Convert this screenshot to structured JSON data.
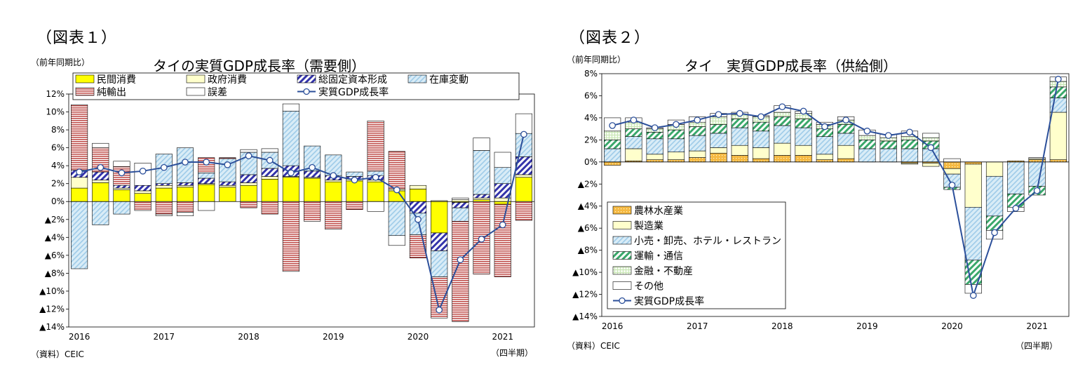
{
  "colors": {
    "private_consumption": "#ffff00",
    "government_consumption": "#ffffcc",
    "gfcf": "#3333aa",
    "inventory": "#9ecbe8",
    "net_exports": "#c0504d",
    "error": "#ffffff",
    "gdp_line": "#2b4f9a",
    "agriculture": "#f5b942",
    "manufacturing": "#ffffcc",
    "retail_hotel": "#9ecbe8",
    "transport": "#3aa86b",
    "finance": "#c8e6b4",
    "other": "#ffffff"
  },
  "panels": [
    {
      "fig_label": "（図表１）",
      "unit": "（前年同期比）",
      "title": "タイの実質GDP成長率（需要側）",
      "source": "（資料）CEIC",
      "quarter_note": "（四半期）"
    },
    {
      "fig_label": "（図表２）",
      "unit": "（前年同期比）",
      "title": "タイ　実質GDP成長率（供給側）",
      "source": "（資料）CEIC",
      "quarter_note": "（四半期）"
    }
  ],
  "chart_data": [
    {
      "type": "bar",
      "stacked": true,
      "title": "タイの実質GDP成長率（需要側）",
      "ylabel": "（前年同期比）",
      "xlabel": "",
      "ylim": [
        -14,
        12
      ],
      "yticks": [
        12,
        10,
        8,
        6,
        4,
        2,
        0,
        -2,
        -4,
        -6,
        -8,
        -10,
        -12,
        -14
      ],
      "ytick_labels": [
        "12%",
        "10%",
        "8%",
        "6%",
        "4%",
        "2%",
        "0%",
        "▲2%",
        "▲4%",
        "▲6%",
        "▲8%",
        "▲10%",
        "▲12%",
        "▲14%"
      ],
      "x_labels": [
        "2016",
        "2017",
        "2018",
        "2019",
        "2020",
        "2021"
      ],
      "x_label_quarter_index": [
        0,
        4,
        8,
        12,
        16,
        20
      ],
      "categories": [
        "2016Q1",
        "2016Q2",
        "2016Q3",
        "2016Q4",
        "2017Q1",
        "2017Q2",
        "2017Q3",
        "2017Q4",
        "2018Q1",
        "2018Q2",
        "2018Q3",
        "2018Q4",
        "2019Q1",
        "2019Q2",
        "2019Q3",
        "2019Q4",
        "2020Q1",
        "2020Q2",
        "2020Q3",
        "2020Q4",
        "2021Q1",
        "2021Q2"
      ],
      "legend_position": "top",
      "grid": false,
      "series": [
        {
          "name": "民間消費",
          "color_key": "private_consumption",
          "pattern": "solid",
          "values": [
            1.5,
            2.1,
            1.3,
            0.9,
            1.5,
            1.6,
            1.9,
            1.6,
            1.8,
            2.5,
            2.7,
            2.6,
            2.2,
            2.3,
            2.2,
            1.2,
            1.4,
            -3.5,
            -0.1,
            0.2,
            -0.3,
            2.7
          ]
        },
        {
          "name": "政府消費",
          "color_key": "government_consumption",
          "pattern": "solid",
          "values": [
            1.2,
            0.3,
            0.2,
            0.3,
            0.3,
            0.2,
            0.1,
            0.2,
            0.3,
            0.3,
            0.1,
            0.1,
            0.2,
            0.2,
            0.2,
            0.2,
            0.4,
            0.1,
            0.2,
            0.2,
            0.4,
            0.3
          ]
        },
        {
          "name": "総固定資本形成",
          "color_key": "gfcf",
          "pattern": "hatch",
          "values": [
            0.8,
            0.9,
            0.3,
            0.6,
            0.2,
            0.3,
            0.6,
            0.4,
            0.9,
            0.9,
            1.2,
            0.7,
            0.5,
            0.3,
            0.5,
            0.0,
            -1.3,
            -2.0,
            -0.6,
            0.4,
            1.6,
            2.0
          ]
        },
        {
          "name": "在庫変動",
          "color_key": "inventory",
          "pattern": "light-hatch",
          "values": [
            -7.5,
            -2.6,
            -1.4,
            0.0,
            3.3,
            3.9,
            0.6,
            2.6,
            2.5,
            1.8,
            6.1,
            2.8,
            2.3,
            0.5,
            0.5,
            -3.8,
            -2.4,
            -2.9,
            -1.5,
            4.9,
            1.8,
            2.6
          ]
        },
        {
          "name": "純輸出",
          "color_key": "net_exports",
          "pattern": "stripe",
          "values": [
            7.3,
            2.7,
            2.1,
            -1.0,
            -1.4,
            -1.2,
            1.7,
            0.1,
            -0.7,
            -1.4,
            -7.8,
            -2.2,
            -3.1,
            -0.9,
            5.6,
            4.2,
            -2.6,
            -4.6,
            -11.2,
            -8.1,
            -8.1,
            -2.1
          ]
        },
        {
          "name": "誤差",
          "color_key": "error",
          "pattern": "solid",
          "values": [
            0.0,
            0.5,
            0.6,
            2.5,
            -0.2,
            -0.4,
            -1.0,
            0.0,
            0.3,
            0.4,
            0.8,
            0.0,
            0.0,
            0.0,
            -1.1,
            -1.1,
            0.0,
            0.0,
            0.2,
            1.4,
            1.7,
            2.2
          ]
        }
      ],
      "line": {
        "name": "実質GDP成長率",
        "color_key": "gdp_line",
        "values": [
          3.3,
          3.8,
          3.2,
          3.4,
          3.8,
          4.4,
          4.4,
          4.1,
          5.1,
          4.6,
          3.2,
          3.8,
          2.9,
          2.4,
          2.7,
          1.3,
          -2.0,
          -12.1,
          -6.5,
          -4.2,
          -2.6,
          7.5
        ]
      }
    },
    {
      "type": "bar",
      "stacked": true,
      "title": "タイ　実質GDP成長率（供給側）",
      "ylabel": "（前年同期比）",
      "xlabel": "",
      "ylim": [
        -14,
        8
      ],
      "yticks": [
        8,
        6,
        4,
        2,
        0,
        -2,
        -4,
        -6,
        -8,
        -10,
        -12,
        -14
      ],
      "ytick_labels": [
        "8%",
        "6%",
        "4%",
        "2%",
        "0%",
        "▲2%",
        "▲4%",
        "▲6%",
        "▲8%",
        "▲10%",
        "▲12%",
        "▲14%"
      ],
      "x_labels": [
        "2016",
        "2017",
        "2018",
        "2019",
        "2020",
        "2021"
      ],
      "x_label_quarter_index": [
        0,
        4,
        8,
        12,
        16,
        20
      ],
      "categories": [
        "2016Q1",
        "2016Q2",
        "2016Q3",
        "2016Q4",
        "2017Q1",
        "2017Q2",
        "2017Q3",
        "2017Q4",
        "2018Q1",
        "2018Q2",
        "2018Q3",
        "2018Q4",
        "2019Q1",
        "2019Q2",
        "2019Q3",
        "2019Q4",
        "2020Q1",
        "2020Q2",
        "2020Q3",
        "2020Q4",
        "2021Q1",
        "2021Q2"
      ],
      "legend_position": "bottom-left",
      "grid": false,
      "series": [
        {
          "name": "農林水産業",
          "color_key": "agriculture",
          "pattern": "dots",
          "values": [
            -0.3,
            0.1,
            0.2,
            0.2,
            0.4,
            0.8,
            0.6,
            0.3,
            0.6,
            0.6,
            0.2,
            0.3,
            0.0,
            0.0,
            -0.1,
            -0.1,
            -0.6,
            -0.2,
            0.0,
            0.1,
            0.2,
            0.2
          ]
        },
        {
          "name": "製造業",
          "color_key": "manufacturing",
          "pattern": "solid",
          "values": [
            0.0,
            1.1,
            0.5,
            0.7,
            0.6,
            0.5,
            0.9,
            1.0,
            1.1,
            0.9,
            0.5,
            1.2,
            0.0,
            0.0,
            -0.1,
            -0.3,
            -0.5,
            -3.9,
            -1.3,
            0.0,
            0.1,
            4.3
          ]
        },
        {
          "name": "小売・卸売、ホテル・レストラン",
          "color_key": "retail_hotel",
          "pattern": "light-hatch",
          "values": [
            1.2,
            1.1,
            1.4,
            1.2,
            1.4,
            1.3,
            1.6,
            1.5,
            1.6,
            1.6,
            1.6,
            1.1,
            1.2,
            1.2,
            1.2,
            1.2,
            -1.2,
            -4.8,
            -3.6,
            -2.9,
            -2.2,
            1.3
          ]
        },
        {
          "name": "運輸・通信",
          "color_key": "transport",
          "pattern": "hatch",
          "values": [
            0.8,
            0.7,
            0.6,
            0.8,
            0.8,
            0.8,
            0.8,
            0.8,
            0.8,
            0.8,
            0.7,
            0.8,
            0.8,
            0.7,
            0.8,
            0.7,
            -0.2,
            -2.2,
            -1.3,
            -1.2,
            -0.8,
            1.0
          ]
        },
        {
          "name": "金融・不動産",
          "color_key": "finance",
          "pattern": "grid",
          "values": [
            0.8,
            0.6,
            0.3,
            0.5,
            0.4,
            0.7,
            0.4,
            0.5,
            0.4,
            0.5,
            0.4,
            0.4,
            0.4,
            0.3,
            0.3,
            0.3,
            0.0,
            0.0,
            0.0,
            0.0,
            0.0,
            0.5
          ]
        },
        {
          "name": "その他",
          "color_key": "other",
          "pattern": "solid",
          "values": [
            1.2,
            0.4,
            0.1,
            0.4,
            0.5,
            0.3,
            0.2,
            0.1,
            0.6,
            0.2,
            0.2,
            0.3,
            0.5,
            0.3,
            0.5,
            0.4,
            0.3,
            -0.8,
            -0.8,
            -0.4,
            0.1,
            0.4
          ]
        }
      ],
      "line": {
        "name": "実質GDP成長率",
        "color_key": "gdp_line",
        "values": [
          3.3,
          3.8,
          3.1,
          3.4,
          3.8,
          4.3,
          4.4,
          4.1,
          5.0,
          4.6,
          3.2,
          3.8,
          2.8,
          2.4,
          2.7,
          1.3,
          -2.1,
          -12.1,
          -6.4,
          -4.2,
          -2.6,
          7.5
        ]
      }
    }
  ]
}
